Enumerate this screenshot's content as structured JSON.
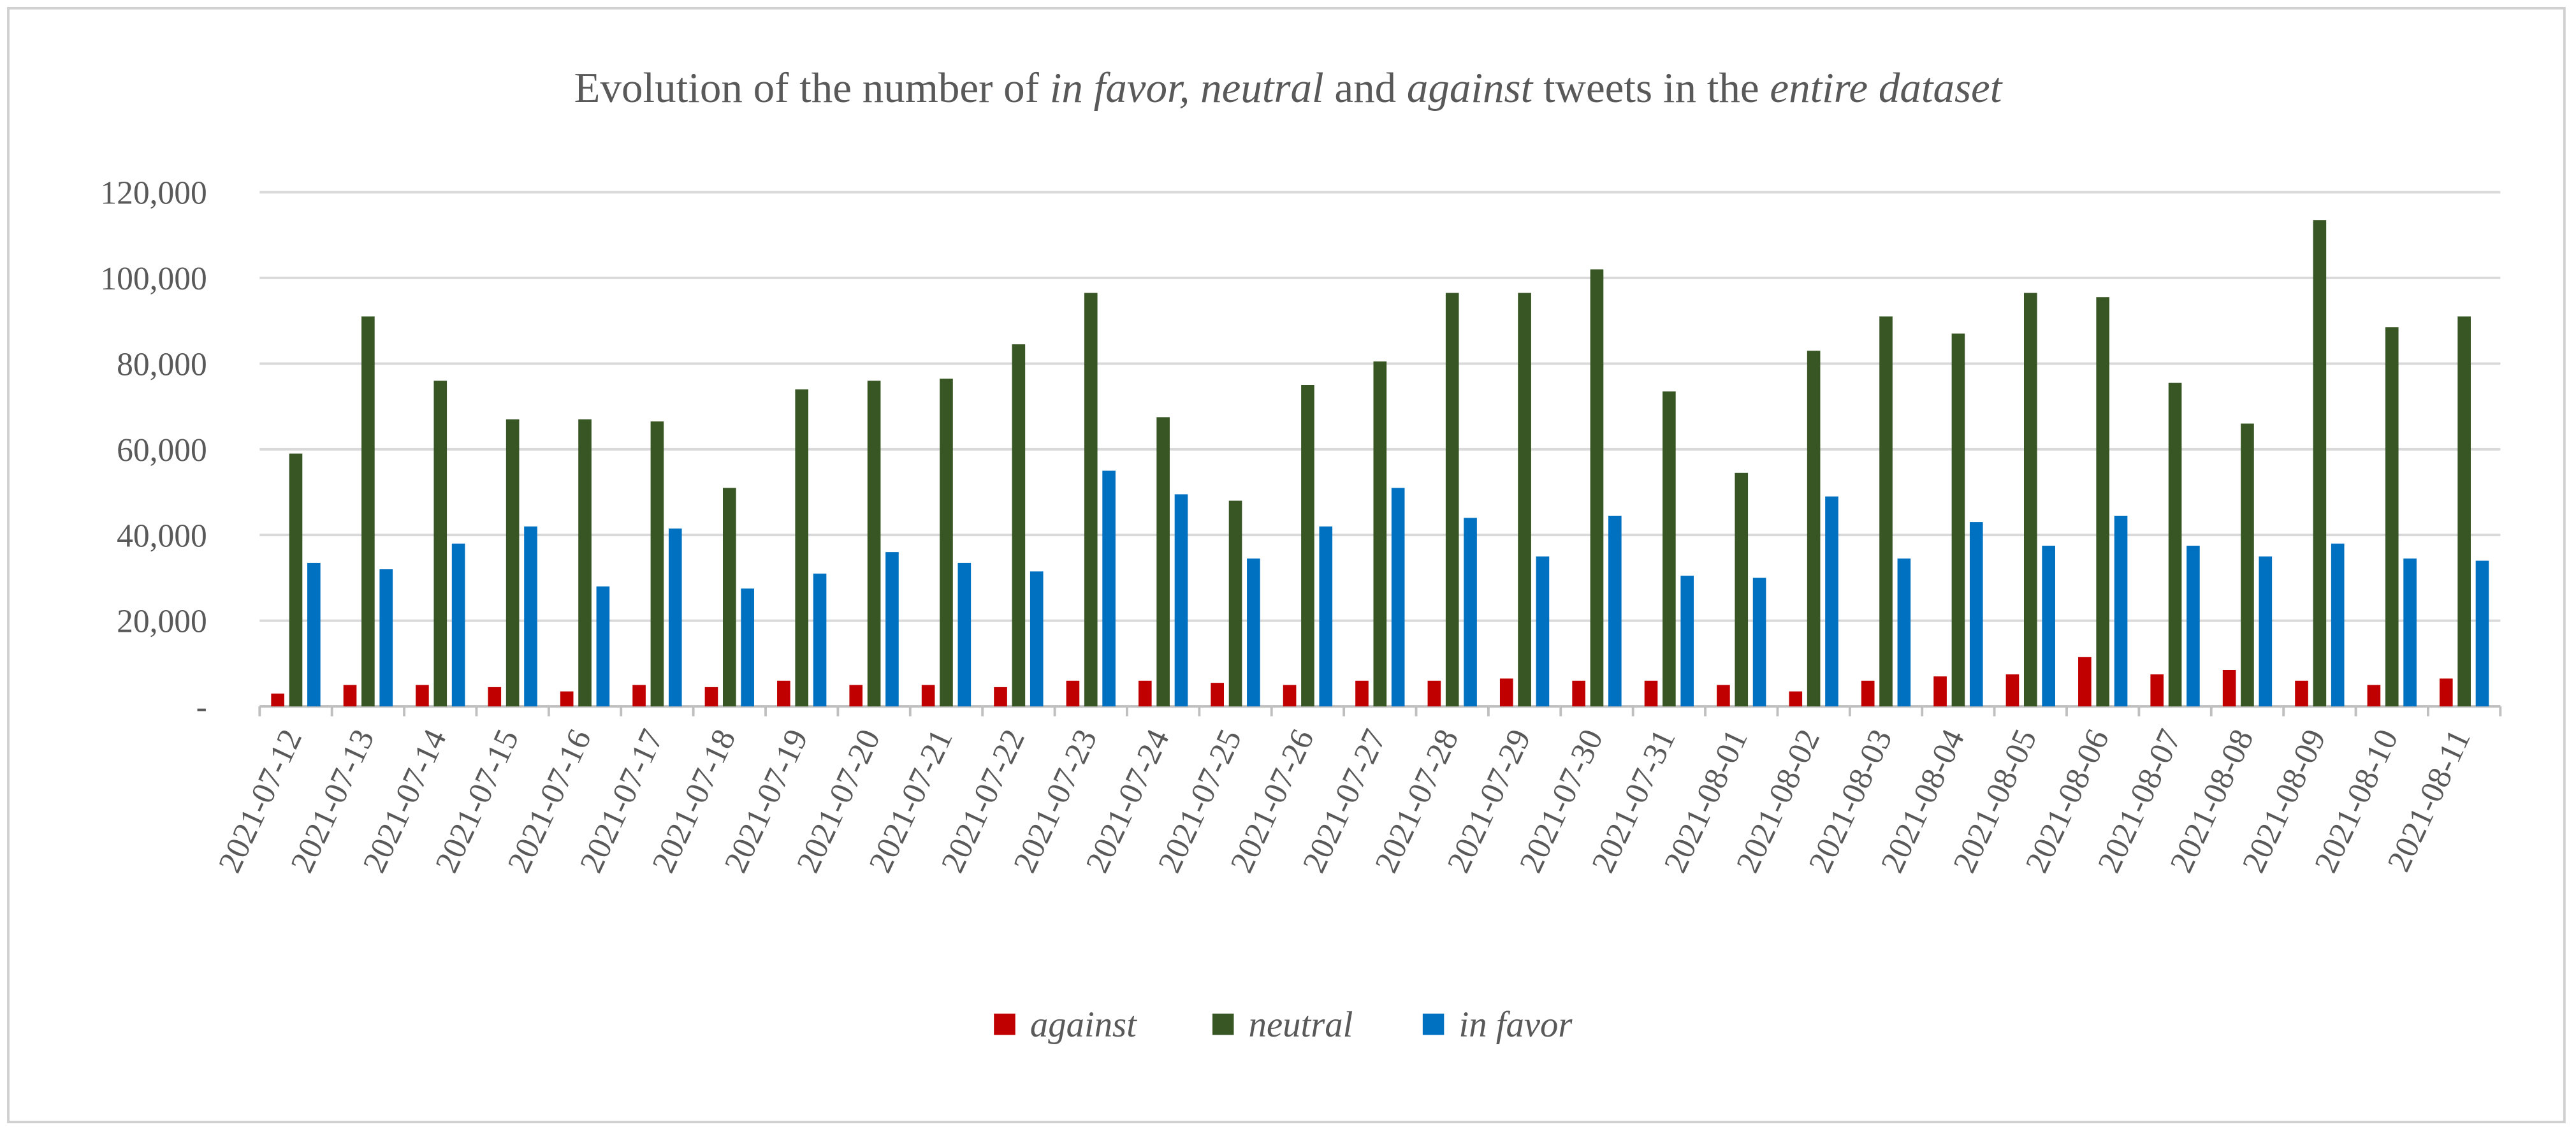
{
  "chart_data": {
    "type": "bar",
    "title": [
      "Evolution of the number of ",
      "in favor, neutral",
      " and ",
      "against",
      " tweets in the ",
      "entire dataset"
    ],
    "categories": [
      "2021-07-12",
      "2021-07-13",
      "2021-07-14",
      "2021-07-15",
      "2021-07-16",
      "2021-07-17",
      "2021-07-18",
      "2021-07-19",
      "2021-07-20",
      "2021-07-21",
      "2021-07-22",
      "2021-07-23",
      "2021-07-24",
      "2021-07-25",
      "2021-07-26",
      "2021-07-27",
      "2021-07-28",
      "2021-07-29",
      "2021-07-30",
      "2021-07-31",
      "2021-08-01",
      "2021-08-02",
      "2021-08-03",
      "2021-08-04",
      "2021-08-05",
      "2021-08-06",
      "2021-08-07",
      "2021-08-08",
      "2021-08-09",
      "2021-08-10",
      "2021-08-11"
    ],
    "series": [
      {
        "name": "against",
        "color": "#c00000",
        "values": [
          3000,
          5000,
          5000,
          4500,
          3500,
          5000,
          4500,
          6000,
          5000,
          5000,
          4500,
          6000,
          6000,
          5500,
          5000,
          6000,
          6000,
          6500,
          6000,
          6000,
          5000,
          3500,
          6000,
          7000,
          7500,
          11500,
          7500,
          8500,
          6000,
          5000,
          6500
        ]
      },
      {
        "name": "neutral",
        "color": "#375623",
        "values": [
          59000,
          91000,
          76000,
          67000,
          67000,
          66500,
          51000,
          74000,
          76000,
          76500,
          84500,
          96500,
          67500,
          48000,
          75000,
          80500,
          96500,
          96500,
          102000,
          73500,
          54500,
          83000,
          91000,
          87000,
          96500,
          95500,
          75500,
          66000,
          113500,
          88500,
          91000
        ]
      },
      {
        "name": "in favor",
        "color": "#0070c0",
        "values": [
          33500,
          32000,
          38000,
          42000,
          28000,
          41500,
          27500,
          31000,
          36000,
          33500,
          31500,
          55000,
          49500,
          34500,
          42000,
          51000,
          44000,
          35000,
          44500,
          30500,
          30000,
          49000,
          34500,
          43000,
          37500,
          44500,
          37500,
          35000,
          38000,
          34500,
          34000
        ]
      }
    ],
    "ylim": [
      0,
      120000
    ],
    "yticks": [
      {
        "value": 0,
        "label": "-"
      },
      {
        "value": 20000,
        "label": "20,000"
      },
      {
        "value": 40000,
        "label": "40,000"
      },
      {
        "value": 60000,
        "label": "60,000"
      },
      {
        "value": 80000,
        "label": "80,000"
      },
      {
        "value": 100000,
        "label": "100,000"
      },
      {
        "value": 120000,
        "label": "120,000"
      }
    ],
    "grid": true,
    "legend": "bottom"
  }
}
